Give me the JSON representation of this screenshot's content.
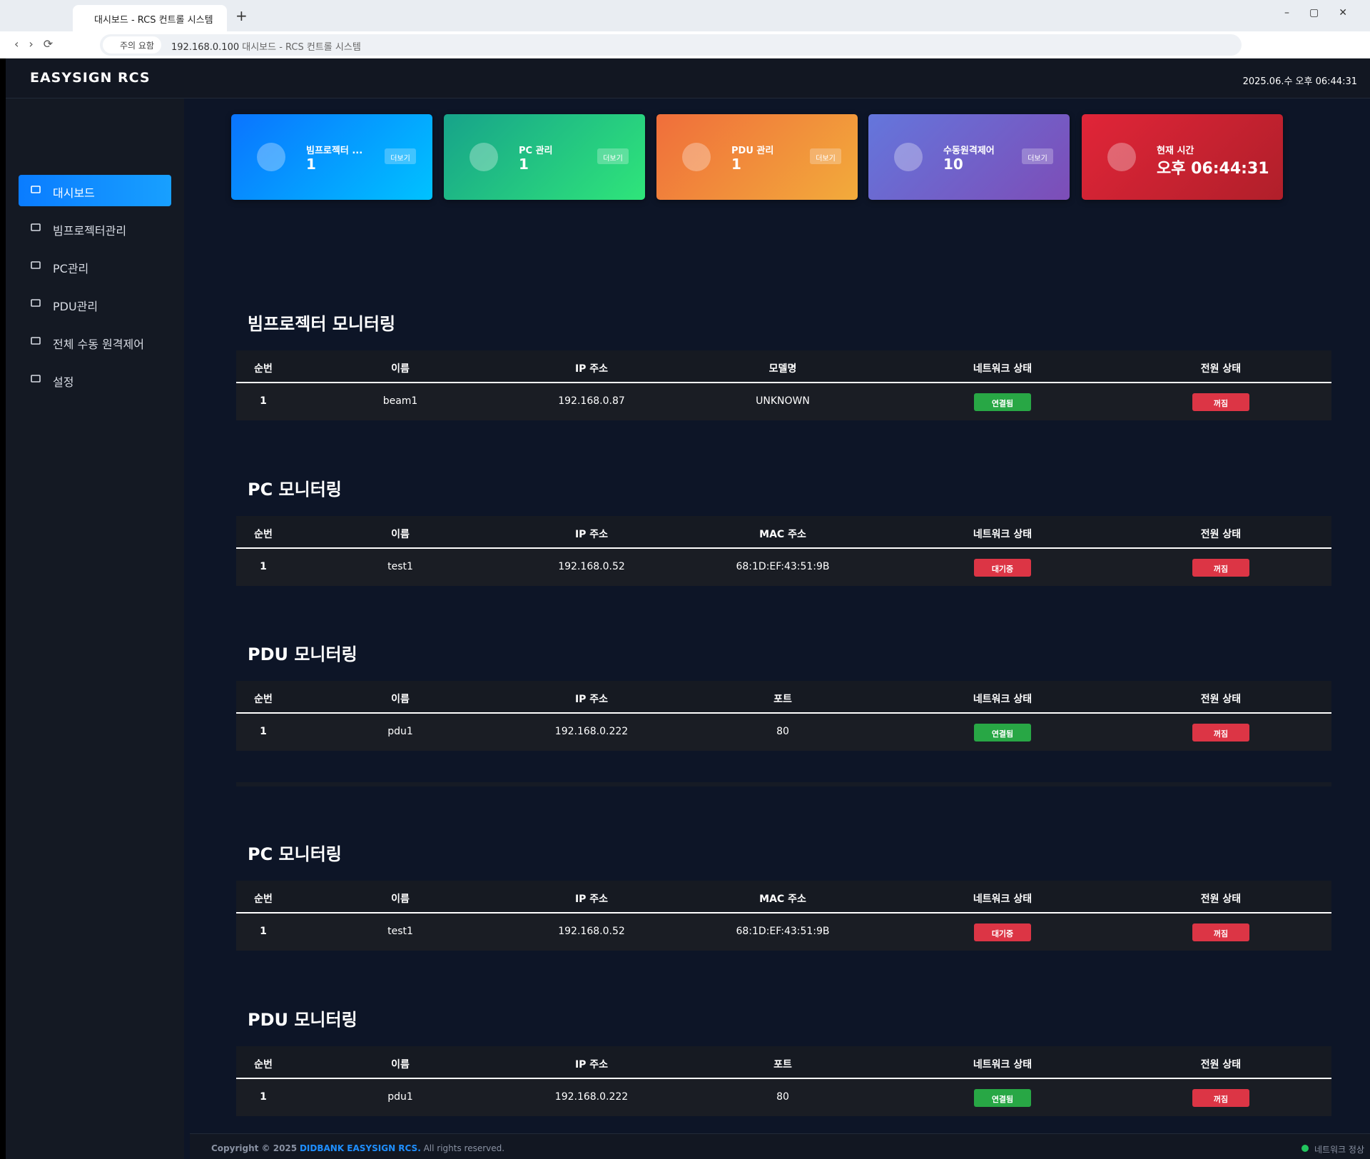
{
  "browser": {
    "tab_title": "대시보드 - RCS 컨트롤 시스템",
    "security": "주의 요함",
    "url": "192.168.0.100",
    "page_title": "대시보드 - RCS 컨트롤 시스템"
  },
  "header": {
    "brand": "EASYSIGN RCS",
    "datetime": "2025.06.수 오후 06:44:31"
  },
  "sidebar": [
    "대시보드",
    "빔프로젝터관리",
    "PC관리",
    "PDU관리",
    "전체 수동 원격제어",
    "설정"
  ],
  "cards": [
    {
      "label": "빔프로젝터 ...",
      "value": "1",
      "button": "더보기",
      "colors": [
        "#0a74ff",
        "#00c2ff"
      ]
    },
    {
      "label": "PC 관리",
      "value": "1",
      "button": "더보기",
      "colors": [
        "#17a38a",
        "#2fe57a"
      ]
    },
    {
      "label": "PDU 관리",
      "value": "1",
      "button": "더보기",
      "colors": [
        "#f06e3b",
        "#f2ab3b"
      ]
    },
    {
      "label": "수동원격제어",
      "value": "10",
      "button": "더보기",
      "colors": [
        "#6476dc",
        "#7d4db7"
      ]
    },
    {
      "label": "현재 시간",
      "value": "오후 06:44:31",
      "colors": [
        "#e12538",
        "#b01f2a"
      ]
    }
  ],
  "sections": [
    {
      "title": "빔프로젝터 모니터링",
      "columns": [
        "순번",
        "이름",
        "IP 주소",
        "모델명",
        "네트워크 상태",
        "전원 상태"
      ],
      "rows": [
        [
          "1",
          "beam1",
          "192.168.0.87",
          "UNKNOWN",
          {
            "label": "연결됨",
            "color": "#28a745"
          },
          {
            "label": "꺼짐",
            "color": "#dc3545"
          }
        ]
      ]
    },
    {
      "title": "PC 모니터링",
      "columns": [
        "순번",
        "이름",
        "IP 주소",
        "MAC 주소",
        "네트워크 상태",
        "전원 상태"
      ],
      "rows": [
        [
          "1",
          "test1",
          "192.168.0.52",
          "68:1D:EF:43:51:9B",
          {
            "label": "대기중",
            "color": "#dc3545"
          },
          {
            "label": "꺼짐",
            "color": "#dc3545"
          }
        ]
      ]
    },
    {
      "title": "PDU 모니터링",
      "columns": [
        "순번",
        "이름",
        "IP 주소",
        "포트",
        "네트워크 상태",
        "전원 상태"
      ],
      "rows": [
        [
          "1",
          "pdu1",
          "192.168.0.222",
          "80",
          {
            "label": "연결됨",
            "color": "#28a745"
          },
          {
            "label": "꺼짐",
            "color": "#dc3545"
          }
        ]
      ]
    },
    {
      "title": "PC 모니터링",
      "columns": [
        "순번",
        "이름",
        "IP 주소",
        "MAC 주소",
        "네트워크 상태",
        "전원 상태"
      ],
      "rows": [
        [
          "1",
          "test1",
          "192.168.0.52",
          "68:1D:EF:43:51:9B",
          {
            "label": "대기중",
            "color": "#dc3545"
          },
          {
            "label": "꺼짐",
            "color": "#dc3545"
          }
        ]
      ]
    },
    {
      "title": "PDU 모니터링",
      "columns": [
        "순번",
        "이름",
        "IP 주소",
        "포트",
        "네트워크 상태",
        "전원 상태"
      ],
      "rows": [
        [
          "1",
          "pdu1",
          "192.168.0.222",
          "80",
          {
            "label": "연결됨",
            "color": "#28a745"
          },
          {
            "label": "꺼짐",
            "color": "#dc3545"
          }
        ]
      ]
    }
  ],
  "footer": {
    "prefix": "Copyright © 2025",
    "company": "DIDBANK EASYSIGN RCS.",
    "suffix": "All rights reserved.",
    "status": "네트워크 정상"
  }
}
